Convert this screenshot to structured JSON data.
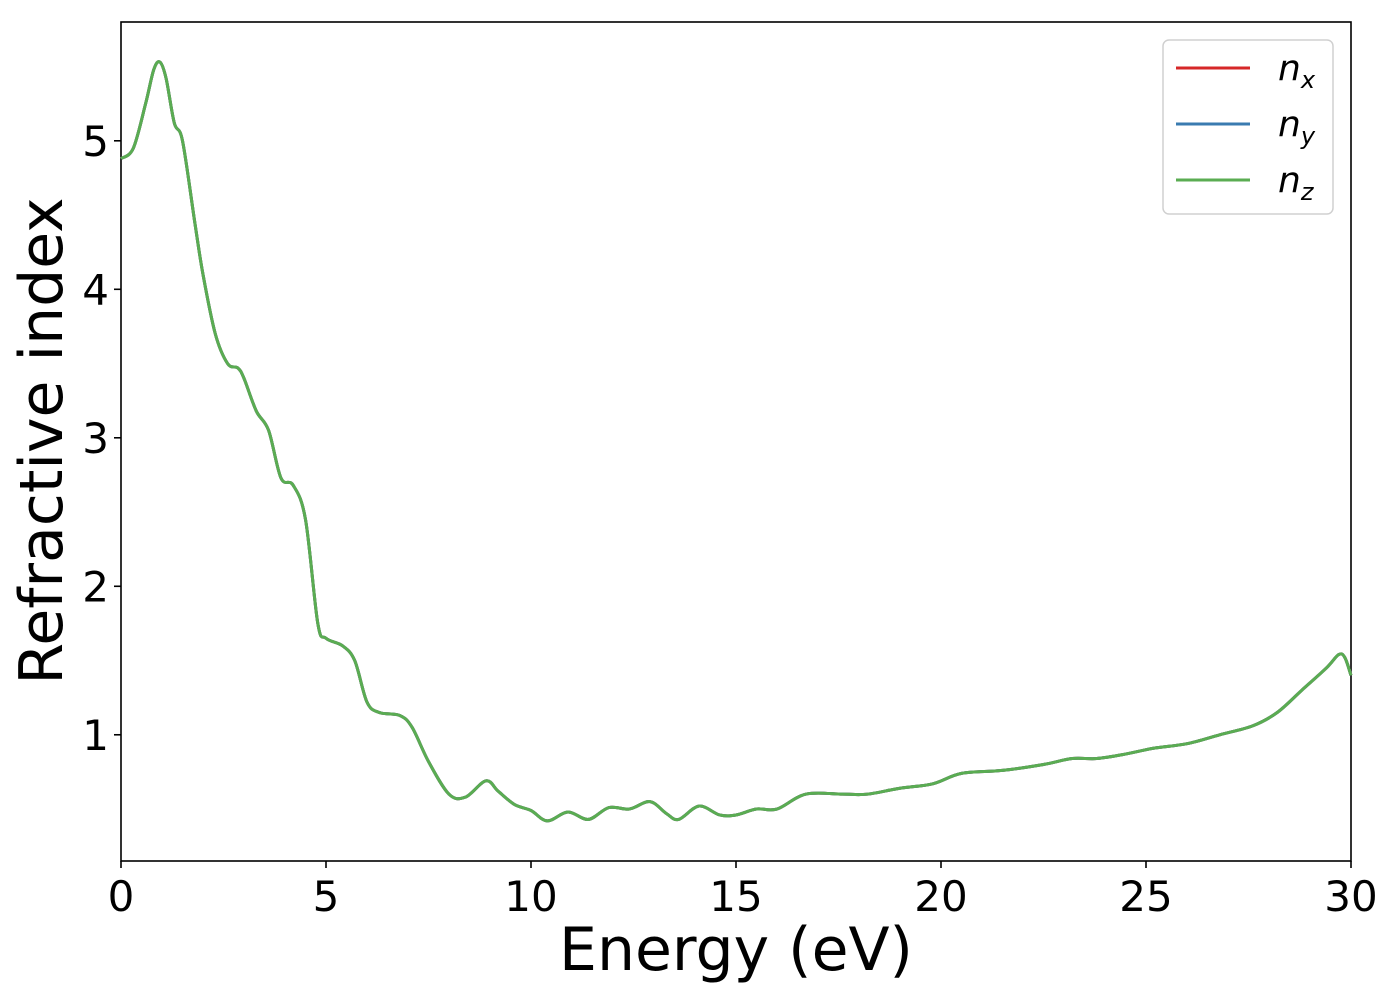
{
  "chart_data": {
    "type": "line",
    "title": "",
    "xlabel": "Energy (eV)",
    "ylabel": "Refractive index",
    "xlim": [
      0,
      30
    ],
    "ylim": [
      0.15,
      5.8
    ],
    "xticks": [
      0,
      5,
      10,
      15,
      20,
      25,
      30
    ],
    "yticks": [
      1,
      2,
      3,
      4,
      5
    ],
    "grid": false,
    "legend_position": "top-right",
    "series": [
      {
        "name": "n",
        "subscript": "x",
        "color": "#d62728",
        "values": "shared"
      },
      {
        "name": "n",
        "subscript": "y",
        "color": "#3a7bb0",
        "values": "shared"
      },
      {
        "name": "n",
        "subscript": "z",
        "color": "#5aac52",
        "values": "shared"
      }
    ],
    "x": [
      0,
      0.3,
      0.6,
      0.8,
      0.95,
      1.1,
      1.3,
      1.5,
      1.8,
      2.0,
      2.3,
      2.6,
      2.85,
      3.0,
      3.3,
      3.6,
      3.9,
      4.2,
      4.5,
      4.8,
      5.0,
      5.4,
      5.7,
      6.0,
      6.3,
      6.8,
      7.1,
      7.5,
      8.0,
      8.4,
      8.9,
      9.2,
      9.6,
      10.0,
      10.4,
      10.9,
      11.4,
      11.9,
      12.4,
      12.9,
      13.3,
      13.6,
      14.1,
      14.6,
      15.0,
      15.5,
      16.0,
      16.7,
      17.6,
      18.2,
      19.0,
      19.8,
      20.5,
      21.5,
      22.5,
      23.2,
      23.8,
      24.5,
      25.2,
      26.0,
      26.8,
      27.6,
      28.2,
      28.8,
      29.4,
      29.7,
      29.85,
      30.0
    ],
    "y": [
      4.88,
      4.95,
      5.25,
      5.48,
      5.53,
      5.42,
      5.12,
      5.0,
      4.45,
      4.1,
      3.7,
      3.5,
      3.47,
      3.4,
      3.18,
      3.05,
      2.73,
      2.68,
      2.45,
      1.75,
      1.65,
      1.6,
      1.5,
      1.22,
      1.15,
      1.13,
      1.05,
      0.82,
      0.6,
      0.58,
      0.69,
      0.62,
      0.53,
      0.49,
      0.42,
      0.48,
      0.43,
      0.51,
      0.5,
      0.55,
      0.47,
      0.43,
      0.52,
      0.46,
      0.46,
      0.5,
      0.5,
      0.6,
      0.6,
      0.6,
      0.64,
      0.67,
      0.74,
      0.76,
      0.8,
      0.84,
      0.84,
      0.87,
      0.91,
      0.94,
      1.0,
      1.06,
      1.15,
      1.3,
      1.45,
      1.54,
      1.52,
      1.4
    ]
  }
}
